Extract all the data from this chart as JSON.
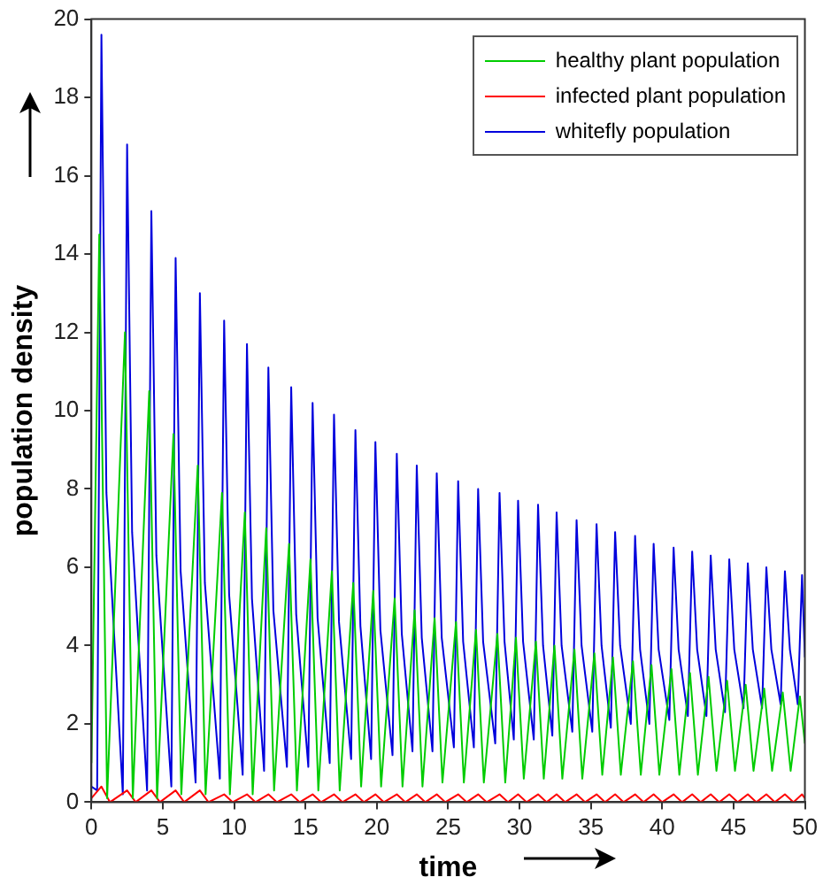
{
  "chart_data": {
    "type": "line",
    "xlabel": "time",
    "ylabel": "population density",
    "xlim": [
      0,
      50
    ],
    "xticks": [
      0,
      5,
      10,
      15,
      20,
      25,
      30,
      35,
      40,
      45,
      50
    ],
    "ylim": [
      0,
      20
    ],
    "yticks": [
      0,
      2,
      4,
      6,
      8,
      10,
      12,
      14,
      16,
      18,
      20
    ],
    "legend": "top right",
    "marker": "none",
    "line_style": "solid",
    "series": [
      {
        "name": "healthy plant population",
        "color": "#00cc00",
        "x": [
          0,
          0.55,
          1.1,
          2.35,
          2.9,
          4.05,
          4.6,
          5.75,
          6.3,
          7.45,
          8.0,
          9.15,
          9.7,
          10.75,
          11.3,
          12.25,
          12.8,
          13.85,
          14.4,
          15.35,
          15.9,
          16.85,
          17.4,
          18.35,
          18.9,
          19.75,
          20.3,
          21.25,
          21.8,
          22.65,
          23.2,
          24.05,
          24.6,
          25.55,
          26.1,
          26.95,
          27.5,
          28.45,
          29.0,
          29.75,
          30.3,
          31.15,
          31.7,
          32.45,
          33.0,
          33.85,
          34.4,
          35.25,
          35.8,
          36.55,
          37.1,
          37.95,
          38.5,
          39.25,
          39.8,
          40.65,
          41.2,
          41.95,
          42.5,
          43.25,
          43.8,
          44.55,
          45.1,
          45.85,
          46.4,
          47.15,
          47.7,
          48.45,
          49.0,
          49.65,
          50
        ],
        "values": [
          1.0,
          14.5,
          0.1,
          12.0,
          0.1,
          10.5,
          0.1,
          9.4,
          0.2,
          8.6,
          0.2,
          7.9,
          0.2,
          7.4,
          0.2,
          7.0,
          0.3,
          6.6,
          0.3,
          6.2,
          0.3,
          5.9,
          0.3,
          5.6,
          0.4,
          5.4,
          0.4,
          5.2,
          0.4,
          4.9,
          0.4,
          4.7,
          0.5,
          4.6,
          0.5,
          4.4,
          0.5,
          4.3,
          0.5,
          4.2,
          0.6,
          4.1,
          0.6,
          4.0,
          0.6,
          3.9,
          0.6,
          3.8,
          0.7,
          3.7,
          0.7,
          3.6,
          0.7,
          3.5,
          0.7,
          3.4,
          0.7,
          3.3,
          0.7,
          3.2,
          0.8,
          3.1,
          0.8,
          3.0,
          0.8,
          2.9,
          0.8,
          2.8,
          0.8,
          2.7,
          1.5
        ]
      },
      {
        "name": "infected plant population",
        "color": "#ff0000",
        "x": [
          0,
          0.7,
          1.3,
          2.5,
          3.1,
          4.2,
          4.8,
          5.9,
          6.5,
          7.6,
          8.2,
          9.3,
          9.9,
          10.9,
          11.5,
          12.4,
          13.0,
          14.0,
          14.6,
          15.5,
          16.1,
          17.0,
          17.6,
          18.5,
          19.1,
          19.9,
          20.5,
          21.4,
          22.0,
          22.8,
          23.4,
          24.2,
          24.8,
          25.7,
          26.3,
          27.1,
          27.7,
          28.6,
          29.2,
          29.9,
          30.5,
          31.3,
          31.9,
          32.6,
          33.2,
          34.0,
          34.6,
          35.4,
          36.0,
          36.7,
          37.3,
          38.1,
          38.7,
          39.4,
          40.0,
          40.8,
          41.4,
          42.1,
          42.7,
          43.4,
          44.0,
          44.7,
          45.3,
          46.0,
          46.6,
          47.3,
          47.9,
          48.6,
          49.2,
          49.8,
          50
        ],
        "values": [
          0.1,
          0.4,
          0.0,
          0.3,
          0.0,
          0.3,
          0.0,
          0.3,
          0.0,
          0.3,
          0.0,
          0.2,
          0.0,
          0.2,
          0.0,
          0.2,
          0.0,
          0.2,
          0.0,
          0.2,
          0.0,
          0.2,
          0.0,
          0.2,
          0.0,
          0.2,
          0.0,
          0.2,
          0.0,
          0.2,
          0.0,
          0.2,
          0.0,
          0.2,
          0.0,
          0.2,
          0.0,
          0.2,
          0.0,
          0.2,
          0.0,
          0.2,
          0.0,
          0.2,
          0.0,
          0.2,
          0.0,
          0.2,
          0.0,
          0.2,
          0.0,
          0.2,
          0.0,
          0.2,
          0.0,
          0.2,
          0.0,
          0.2,
          0.0,
          0.2,
          0.0,
          0.2,
          0.0,
          0.2,
          0.0,
          0.2,
          0.0,
          0.2,
          0.0,
          0.2,
          0.1
        ]
      },
      {
        "name": "whitefly population",
        "color": "#0000dd",
        "x": [
          0,
          0.4,
          0.7,
          1.05,
          2.2,
          2.5,
          2.85,
          3.9,
          4.2,
          4.55,
          5.6,
          5.9,
          6.25,
          7.3,
          7.6,
          7.95,
          9.0,
          9.3,
          9.65,
          10.6,
          10.9,
          11.25,
          12.1,
          12.4,
          12.75,
          13.7,
          14.0,
          14.35,
          15.2,
          15.5,
          15.85,
          16.7,
          17.0,
          17.35,
          18.2,
          18.5,
          18.85,
          19.6,
          19.9,
          20.25,
          21.1,
          21.4,
          21.75,
          22.5,
          22.8,
          23.15,
          23.9,
          24.2,
          24.55,
          25.4,
          25.7,
          26.05,
          26.8,
          27.1,
          27.45,
          28.3,
          28.6,
          28.95,
          29.6,
          29.9,
          30.25,
          31.0,
          31.3,
          31.65,
          32.3,
          32.6,
          32.95,
          33.7,
          34.0,
          34.35,
          35.1,
          35.4,
          35.75,
          36.4,
          36.7,
          37.05,
          37.8,
          38.1,
          38.45,
          39.1,
          39.4,
          39.75,
          40.5,
          40.8,
          41.15,
          41.8,
          42.1,
          42.45,
          43.1,
          43.4,
          43.75,
          44.4,
          44.7,
          45.05,
          45.7,
          46.0,
          46.35,
          47.0,
          47.3,
          47.65,
          48.3,
          48.6,
          48.95,
          49.5,
          49.8,
          50
        ],
        "values": [
          0.4,
          0.3,
          19.6,
          7.9,
          0.2,
          16.8,
          6.9,
          0.3,
          15.1,
          6.3,
          0.4,
          13.9,
          5.9,
          0.5,
          13.0,
          5.6,
          0.6,
          12.3,
          5.3,
          0.7,
          11.7,
          5.2,
          0.8,
          11.1,
          4.9,
          0.9,
          10.6,
          4.8,
          0.9,
          10.2,
          4.7,
          1.0,
          9.9,
          4.6,
          1.1,
          9.5,
          4.5,
          1.1,
          9.2,
          4.4,
          1.2,
          8.9,
          4.3,
          1.3,
          8.6,
          4.2,
          1.3,
          8.4,
          4.2,
          1.4,
          8.2,
          4.1,
          1.4,
          8.0,
          4.1,
          1.5,
          7.9,
          4.1,
          1.6,
          7.7,
          4.1,
          1.6,
          7.6,
          4.0,
          1.7,
          7.4,
          4.0,
          1.8,
          7.2,
          4.0,
          1.8,
          7.1,
          4.0,
          1.9,
          6.9,
          4.0,
          2.0,
          6.8,
          3.9,
          2.0,
          6.6,
          3.9,
          2.1,
          6.5,
          3.9,
          2.2,
          6.4,
          3.9,
          2.2,
          6.3,
          3.9,
          2.3,
          6.2,
          3.9,
          2.4,
          6.1,
          3.9,
          2.4,
          6.0,
          3.9,
          2.5,
          5.9,
          3.9,
          2.5,
          5.8,
          3.7
        ]
      }
    ]
  }
}
